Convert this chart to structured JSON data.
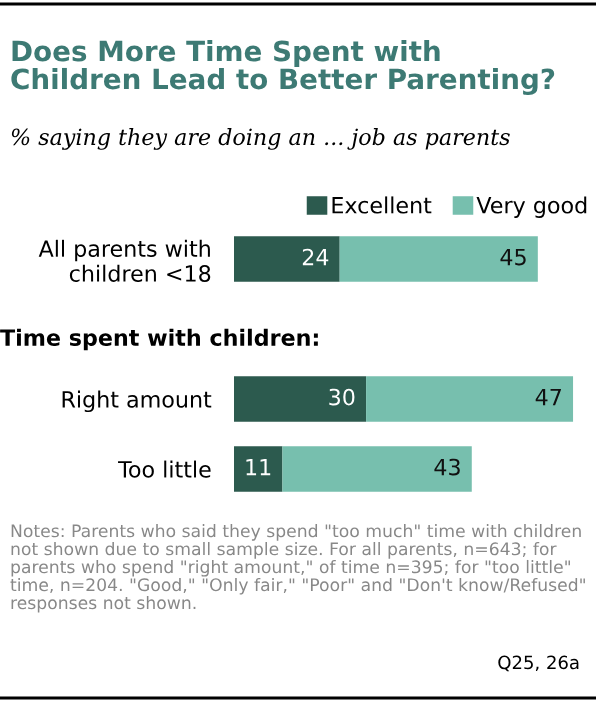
{
  "chart_data": {
    "type": "bar",
    "orientation": "horizontal",
    "stacked": true,
    "data_labels": true,
    "legend": "top",
    "grid": false,
    "title": "Does More Time Spent with\nChildren Lead to Better Parenting?",
    "subtitle": "% saying they are doing an ... job as parents",
    "categories": [
      "All parents with\nchildren <18",
      null,
      "Right amount",
      "Too little"
    ],
    "series": [
      {
        "name": "Excellent",
        "color": "#2c5a4e",
        "values": [
          24,
          null,
          30,
          11
        ]
      },
      {
        "name": "Very good",
        "color": "#77bfae",
        "values": [
          45,
          null,
          47,
          43
        ]
      }
    ],
    "annotations": [
      "Time spent with children:",
      "Notes: Parents who said they spend \"too much\" time with children not shown due to small sample size. For all parents, n=643; for parents who spend \"right amount,\" of time n=395; for \"too little\" time, n=204. \"Good,\" \"Only fair,\" \"Poor\" and \"Don't know/Refused\" responses not shown.",
      "Q25, 26a"
    ]
  }
}
